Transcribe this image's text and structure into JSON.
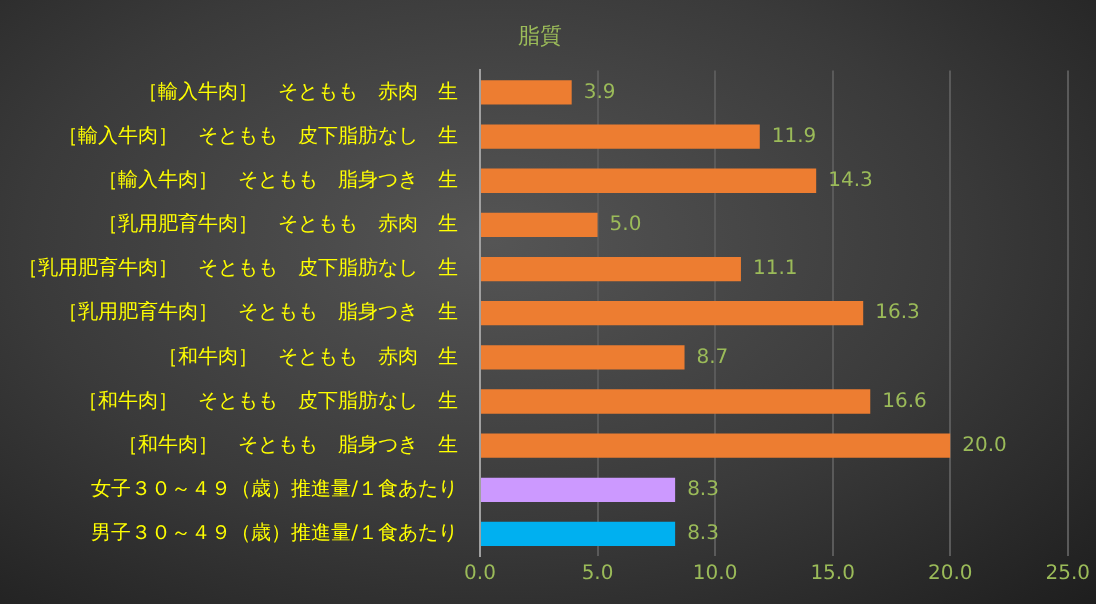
{
  "chart_data": {
    "type": "bar",
    "orientation": "horizontal",
    "title": "脂質",
    "categories": [
      "［輸入牛肉］　そともも　赤肉　生",
      "［輸入牛肉］　そともも　皮下脂肪なし　生",
      "［輸入牛肉］　そともも　脂身つき　生",
      "［乳用肥育牛肉］　そともも　赤肉　生",
      "［乳用肥育牛肉］　そともも　皮下脂肪なし　生",
      "［乳用肥育牛肉］　そともも　脂身つき　生",
      "［和牛肉］　そともも　赤肉　生",
      "［和牛肉］　そともも　皮下脂肪なし　生",
      "［和牛肉］　そともも　脂身つき　生",
      "女子３０～４９（歳）推進量/１食あたり",
      "男子３０～４９（歳）推進量/１食あたり"
    ],
    "values": [
      3.9,
      11.9,
      14.3,
      5.0,
      11.1,
      16.3,
      8.7,
      16.6,
      20.0,
      8.3,
      8.3
    ],
    "value_labels": [
      "3.9",
      "11.9",
      "14.3",
      "5.0",
      "11.1",
      "16.3",
      "8.7",
      "16.6",
      "20.0",
      "8.3",
      "8.3"
    ],
    "colors": [
      "#ed7d31",
      "#ed7d31",
      "#ed7d31",
      "#ed7d31",
      "#ed7d31",
      "#ed7d31",
      "#ed7d31",
      "#ed7d31",
      "#ed7d31",
      "#cc99ff",
      "#00b0f0"
    ],
    "xlim": [
      0,
      25
    ],
    "xticks": [
      {
        "value": 0,
        "label": "0.0"
      },
      {
        "value": 5,
        "label": "5.0"
      },
      {
        "value": 10,
        "label": "10.0"
      },
      {
        "value": 15,
        "label": "15.0"
      },
      {
        "value": 20,
        "label": "20.0"
      },
      {
        "value": 25,
        "label": "25.0"
      }
    ],
    "grid": "x",
    "legend": false
  }
}
